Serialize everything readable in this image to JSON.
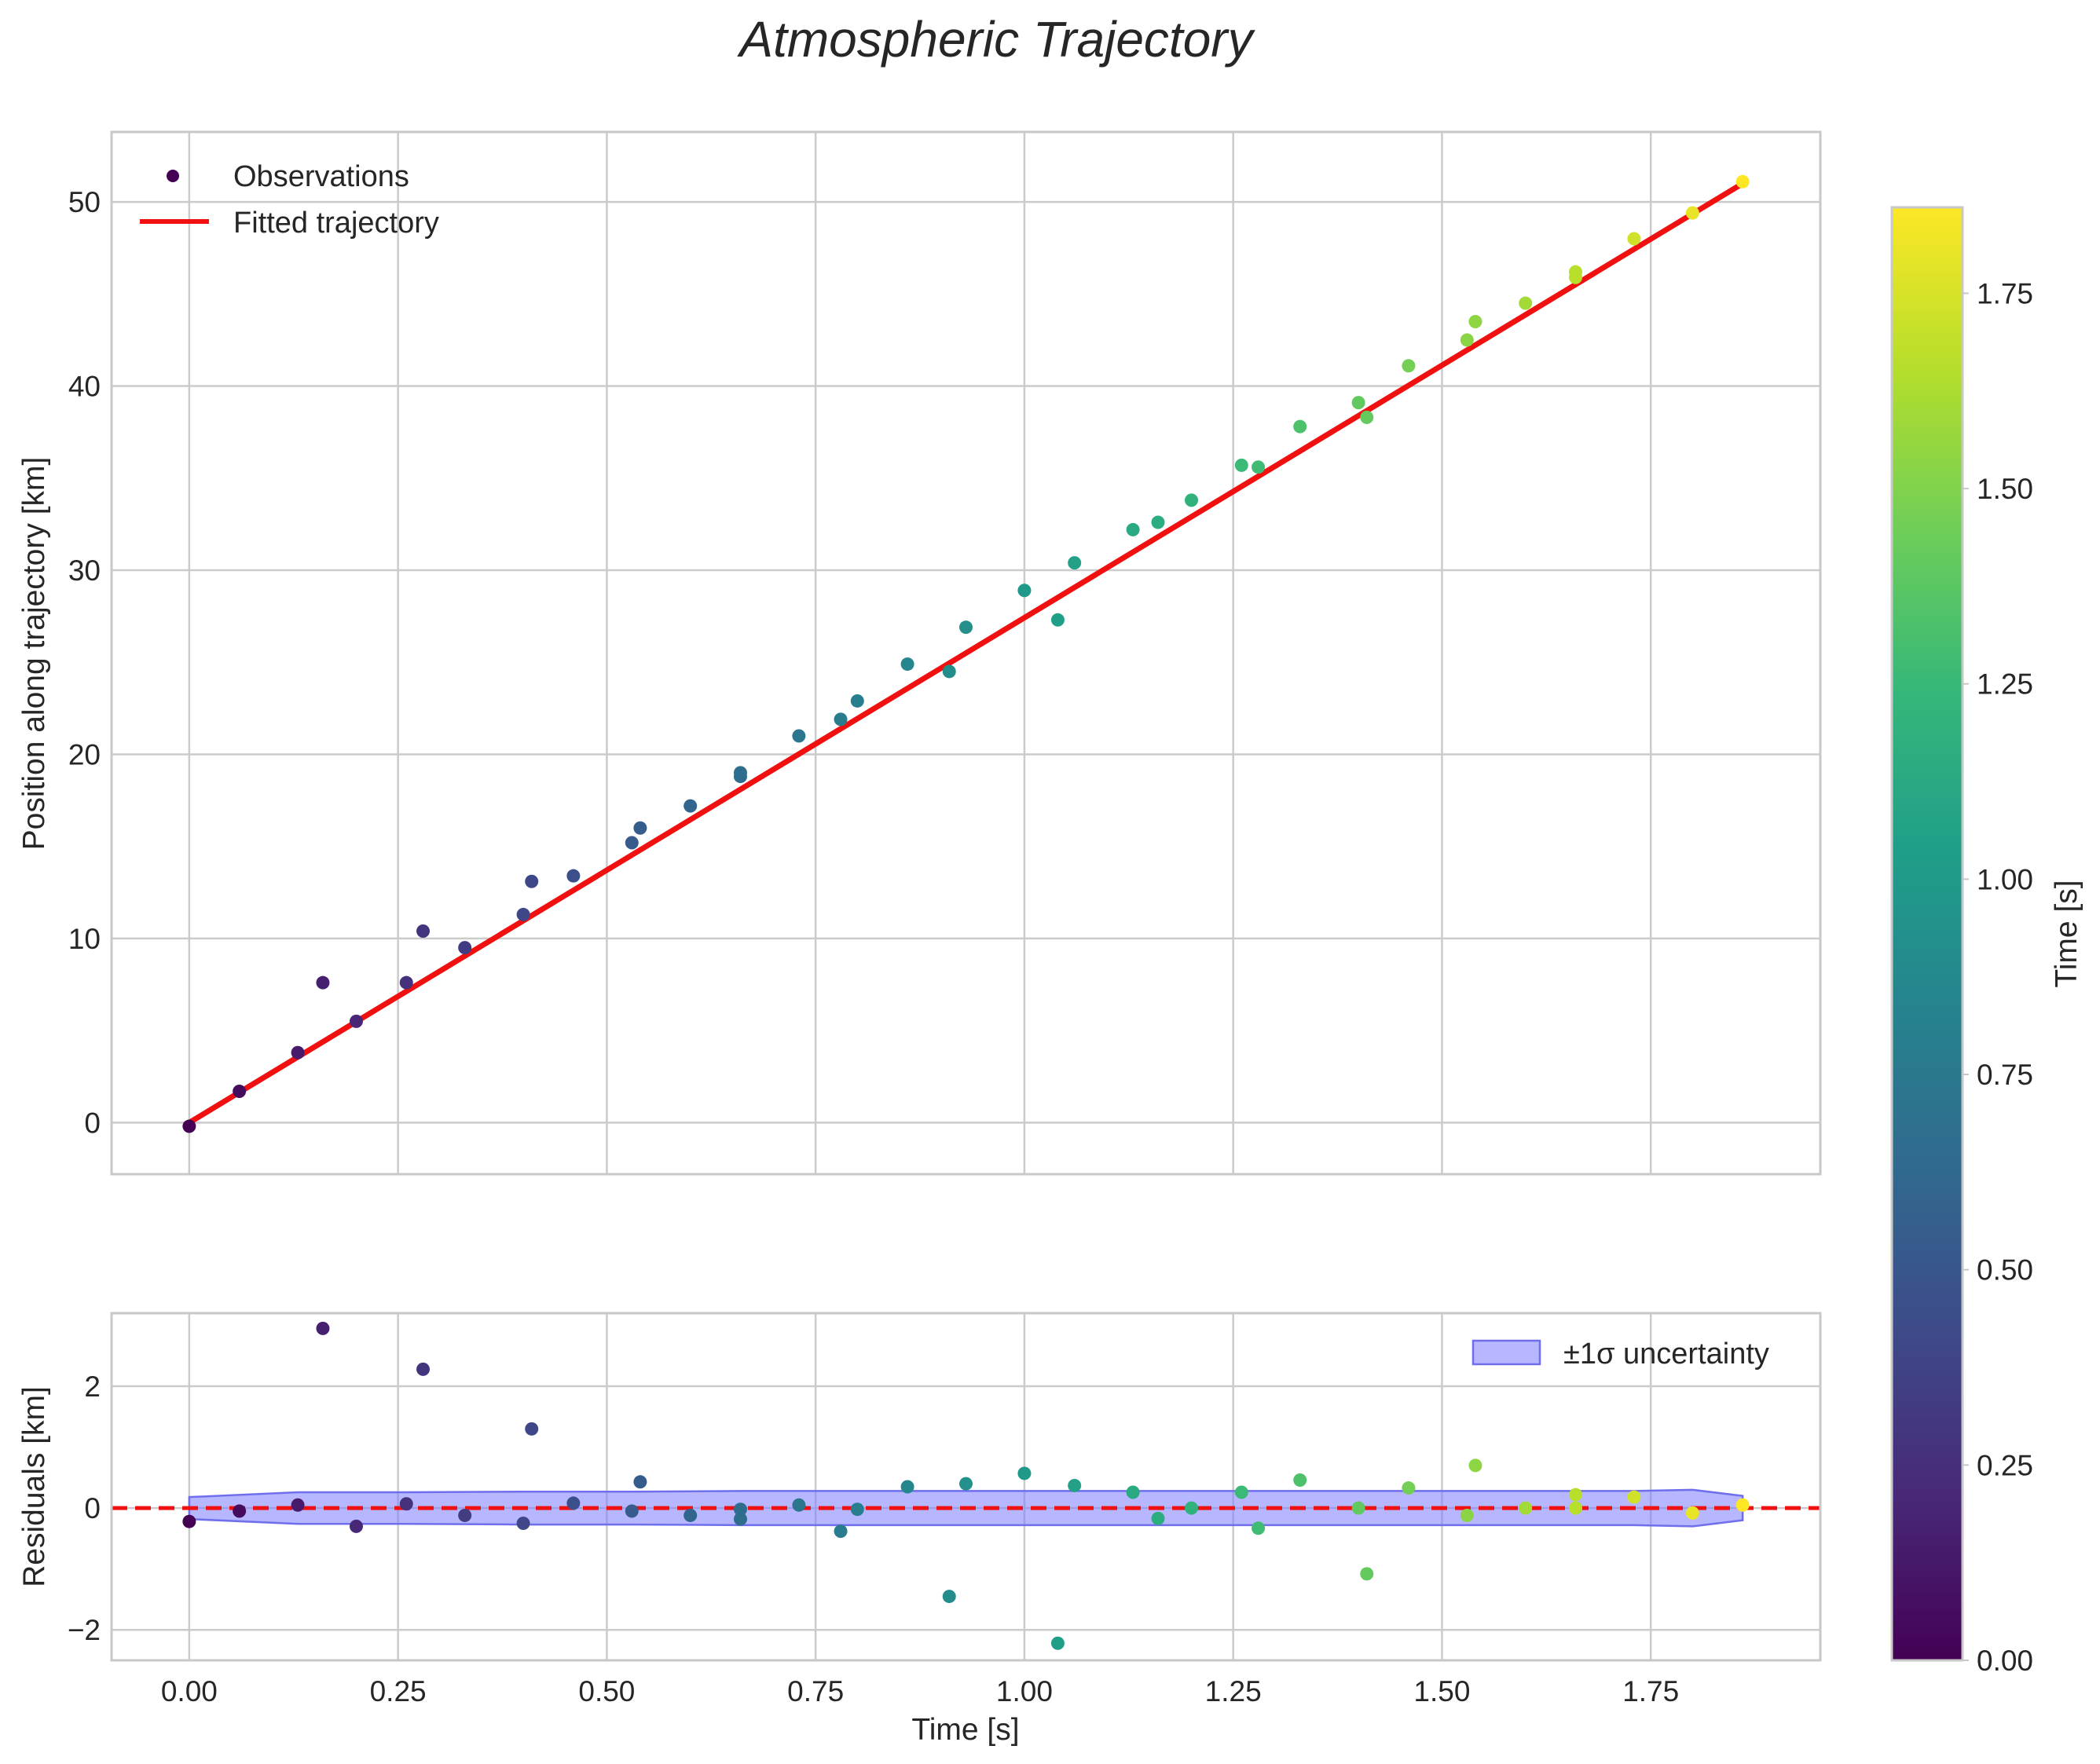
{
  "chart_data": {
    "title": "Atmospheric Trajectory",
    "type": "scatter",
    "panels": {
      "top": {
        "ylabel": "Position along trajectory [km]",
        "xlim": [
          -0.093,
          1.953
        ],
        "ylim": [
          -2.8,
          53.8
        ],
        "xticks": [
          0.0,
          0.25,
          0.5,
          0.75,
          1.0,
          1.25,
          1.5,
          1.75
        ],
        "yticks": [
          0,
          10,
          20,
          30,
          40,
          50
        ],
        "ytick_labels": [
          "0",
          "10",
          "20",
          "30",
          "40",
          "50"
        ],
        "legend": {
          "location": "upper-left",
          "observations": "Observations",
          "fit": "Fitted trajectory"
        },
        "fit_line": {
          "x": [
            0.0,
            1.86
          ],
          "y": [
            0.0,
            51.0
          ],
          "color": "#f01010"
        }
      },
      "bottom": {
        "ylabel": "Residuals [km]",
        "xlabel": "Time [s]",
        "xlim": [
          -0.093,
          1.953
        ],
        "ylim": [
          -2.5,
          3.2
        ],
        "xticks": [
          0.0,
          0.25,
          0.5,
          0.75,
          1.0,
          1.25,
          1.5,
          1.75
        ],
        "xtick_labels": [
          "0.00",
          "0.25",
          "0.50",
          "0.75",
          "1.00",
          "1.25",
          "1.50",
          "1.75"
        ],
        "yticks": [
          -2,
          0,
          2
        ],
        "ytick_labels": [
          "−2",
          "0",
          "2"
        ],
        "zero_line": 0,
        "legend": {
          "location": "upper-right",
          "band": "±1σ uncertainty"
        },
        "band": {
          "x": [
            0.0,
            0.13,
            0.26,
            0.4,
            0.53,
            0.66,
            0.8,
            0.93,
            1.06,
            1.2,
            1.33,
            1.46,
            1.6,
            1.73,
            1.8,
            1.86
          ],
          "half_width": [
            0.18,
            0.26,
            0.26,
            0.27,
            0.27,
            0.28,
            0.28,
            0.28,
            0.28,
            0.28,
            0.28,
            0.28,
            0.28,
            0.28,
            0.3,
            0.2
          ],
          "color": "#7b7bff"
        }
      }
    },
    "observations": {
      "t": [
        0.0,
        0.06,
        0.13,
        0.16,
        0.2,
        0.26,
        0.28,
        0.33,
        0.4,
        0.41,
        0.46,
        0.53,
        0.54,
        0.6,
        0.66,
        0.66,
        0.73,
        0.78,
        0.8,
        0.86,
        0.91,
        0.93,
        1.0,
        1.04,
        1.06,
        1.13,
        1.16,
        1.2,
        1.26,
        1.28,
        1.33,
        1.4,
        1.41,
        1.46,
        1.53,
        1.54,
        1.6,
        1.66,
        1.66,
        1.73,
        1.8,
        1.86
      ],
      "position": [
        -0.2,
        1.7,
        3.8,
        7.6,
        5.5,
        7.6,
        10.4,
        9.5,
        11.3,
        13.1,
        13.4,
        15.2,
        16.0,
        17.2,
        18.8,
        19.0,
        21.0,
        21.9,
        22.9,
        24.9,
        24.5,
        26.9,
        28.9,
        27.3,
        30.4,
        32.2,
        32.6,
        33.8,
        35.7,
        35.6,
        37.8,
        39.1,
        38.3,
        41.1,
        42.5,
        43.5,
        44.5,
        45.9,
        46.2,
        48.0,
        49.4,
        51.1
      ],
      "residual": [
        -0.22,
        -0.05,
        0.05,
        2.95,
        -0.3,
        0.07,
        2.28,
        -0.12,
        -0.25,
        1.3,
        0.08,
        -0.05,
        0.43,
        -0.12,
        -0.18,
        -0.02,
        0.05,
        -0.38,
        -0.02,
        0.35,
        -1.45,
        0.4,
        0.57,
        -2.22,
        0.37,
        0.26,
        -0.17,
        0.0,
        0.26,
        -0.33,
        0.46,
        0.0,
        -1.08,
        0.33,
        -0.12,
        0.7,
        0.0,
        0.0,
        0.22,
        0.18,
        -0.08,
        0.05
      ]
    },
    "colorbar": {
      "label": "Time [s]",
      "range": [
        0.0,
        1.86
      ],
      "ticks": [
        0.0,
        0.25,
        0.5,
        0.75,
        1.0,
        1.25,
        1.5,
        1.75
      ],
      "tick_labels": [
        "0.00",
        "0.25",
        "0.50",
        "0.75",
        "1.00",
        "1.25",
        "1.50",
        "1.75"
      ],
      "colormap": "viridis",
      "stops": [
        "#440154",
        "#482878",
        "#3e4989",
        "#31688e",
        "#26828e",
        "#1f9e89",
        "#35b779",
        "#6ece58",
        "#b5de2b",
        "#fde725"
      ]
    }
  }
}
